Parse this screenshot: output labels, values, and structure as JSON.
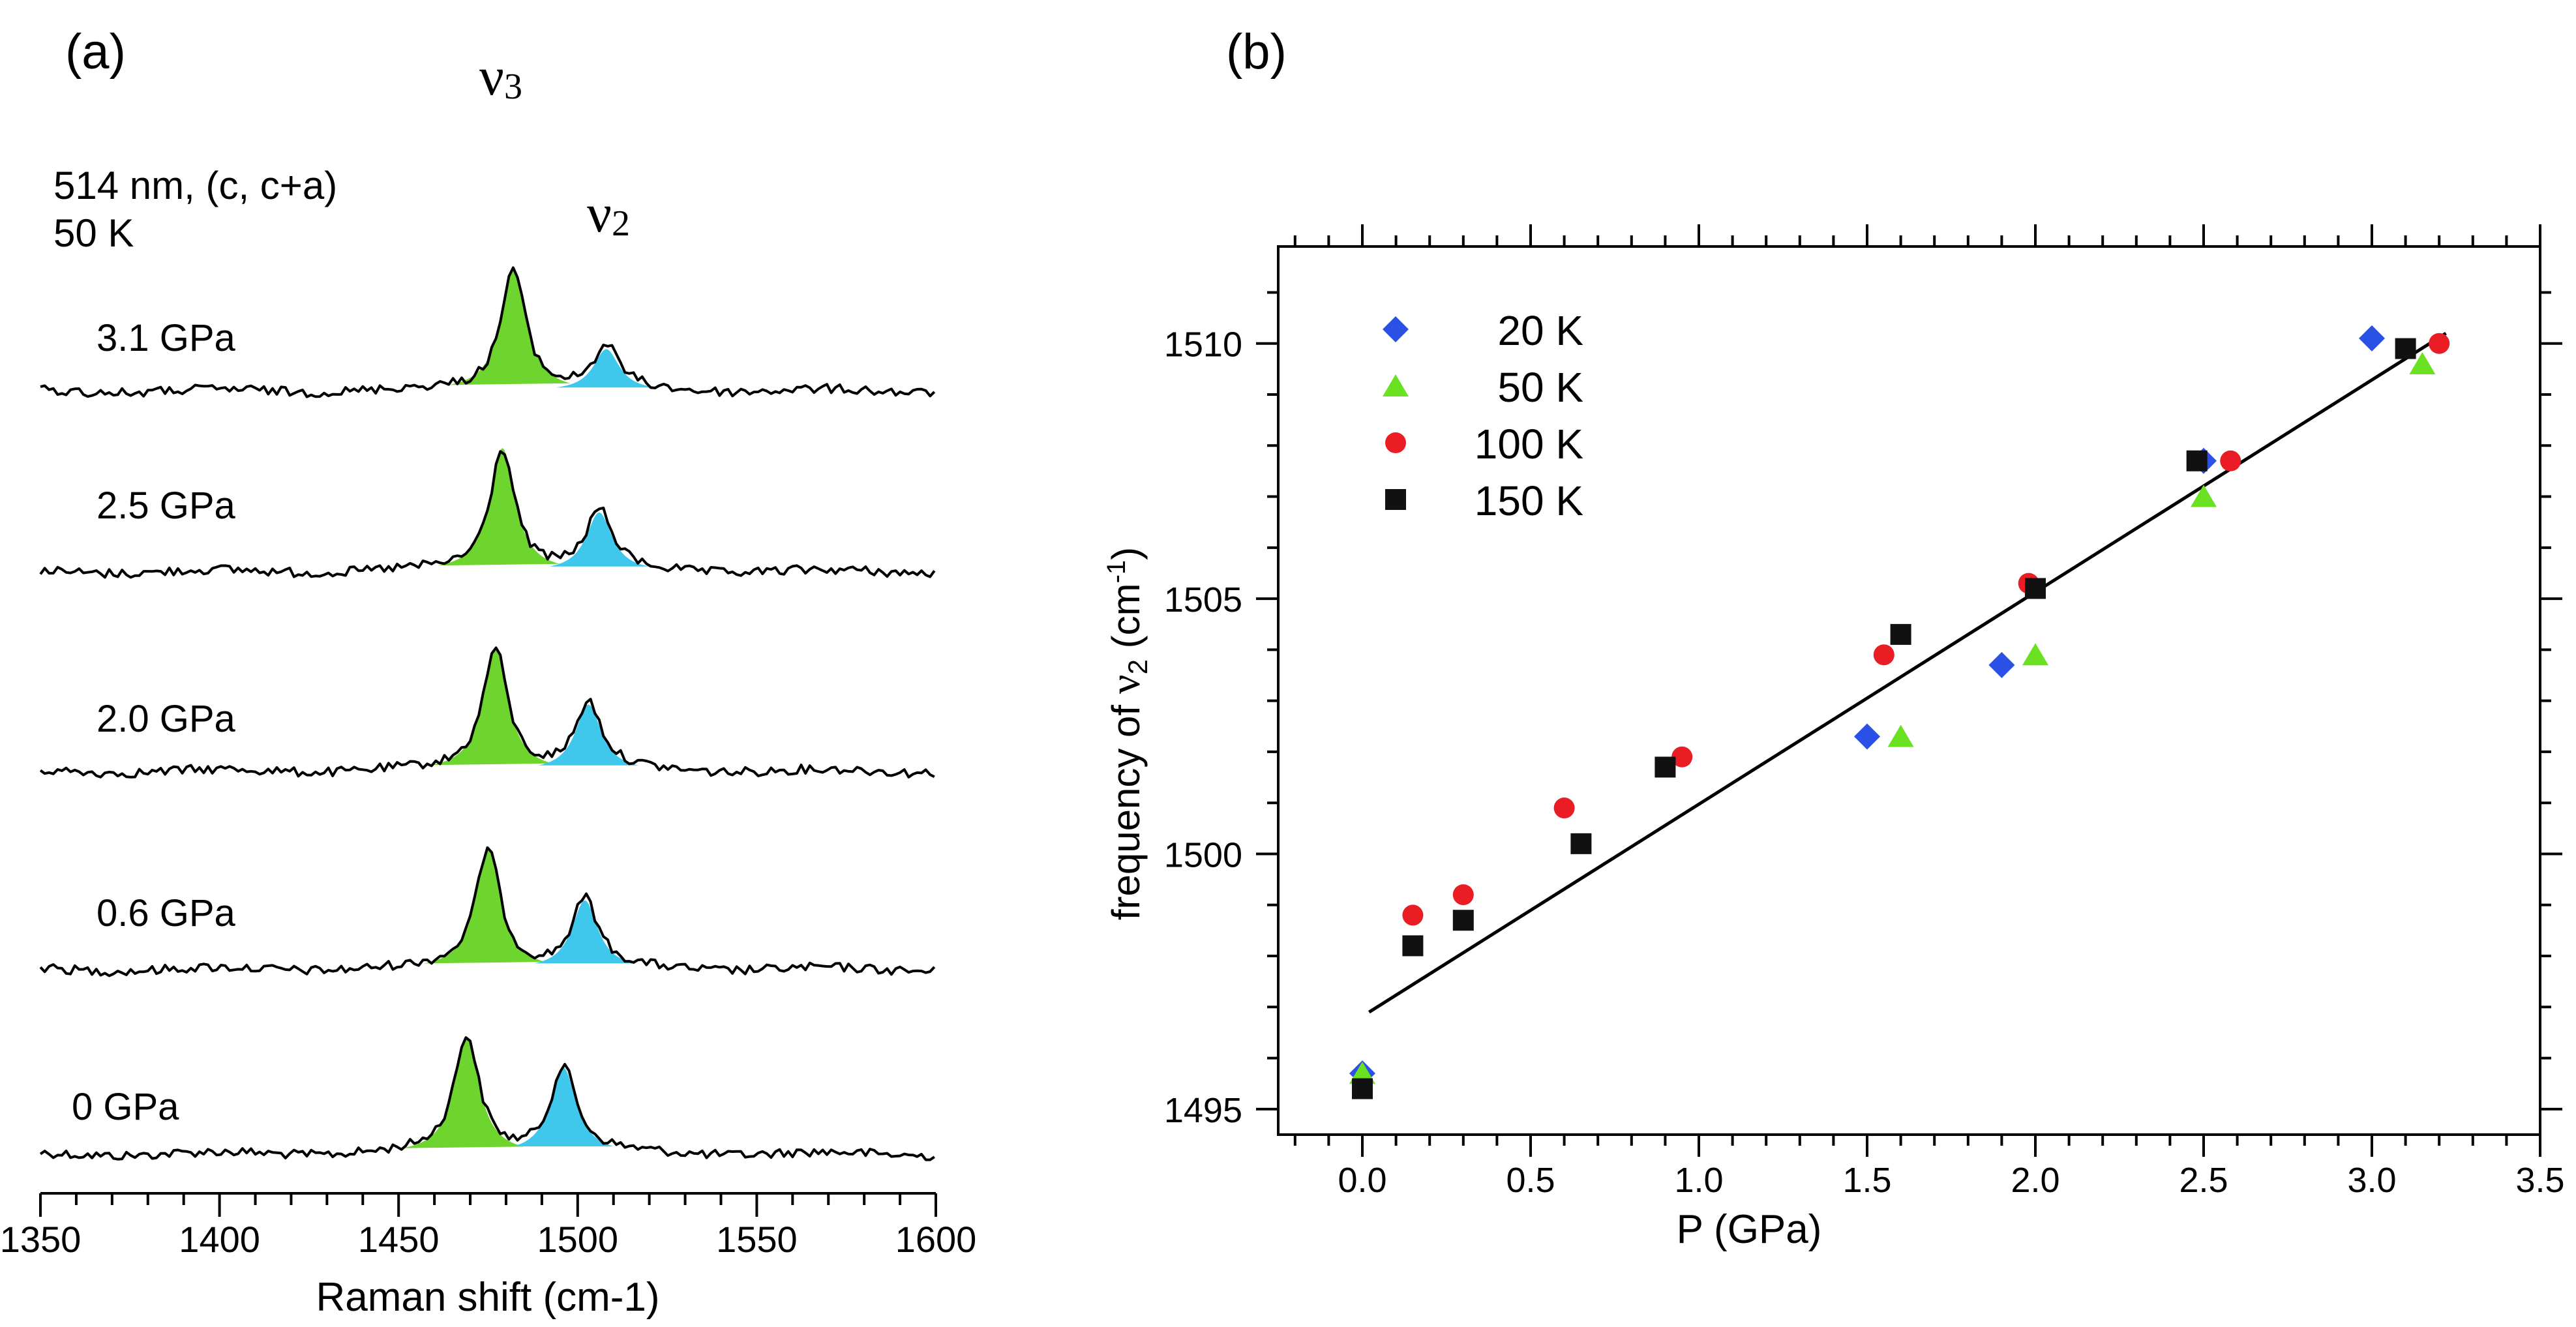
{
  "chart_data": [
    {
      "type": "line",
      "panel_label": "(a)",
      "title": "",
      "xlabel": "Raman shift (cm-1)",
      "ylabel": "",
      "xlim": [
        1350,
        1600
      ],
      "xticks": [
        "1350",
        "1400",
        "1450",
        "1500",
        "1550",
        "1600"
      ],
      "annotation_conditions": [
        "514 nm, (c, c+a)",
        "50 K"
      ],
      "peak_labels": {
        "v3": {
          "sym": "ν",
          "sub": "3"
        },
        "v2": {
          "sym": "ν",
          "sub": "2"
        }
      },
      "colors": {
        "v3_fill": "#6ed42e",
        "v2_fill": "#40c8ec",
        "trace": "#000000"
      },
      "series": [
        {
          "name": "0 GPa",
          "v3_center": 1469,
          "v2_center": 1496,
          "v3_height": 0.95,
          "v2_height": 0.7
        },
        {
          "name": "0.6 GPa",
          "v3_center": 1475,
          "v2_center": 1502,
          "v3_height": 0.98,
          "v2_height": 0.56
        },
        {
          "name": "2.0 GPa",
          "v3_center": 1477,
          "v2_center": 1503,
          "v3_height": 1.0,
          "v2_height": 0.54
        },
        {
          "name": "2.5 GPa",
          "v3_center": 1479,
          "v2_center": 1506,
          "v3_height": 1.0,
          "v2_height": 0.48
        },
        {
          "name": "3.1 GPa",
          "v3_center": 1482,
          "v2_center": 1508,
          "v3_height": 1.0,
          "v2_height": 0.34
        }
      ]
    },
    {
      "type": "scatter",
      "panel_label": "(b)",
      "title": "",
      "xlabel": "P (GPa)",
      "ylabel_parts": {
        "pre": "frequency of ",
        "sym": "ν",
        "sub": "2",
        "mid": " (cm",
        "sup": "-1",
        "post": ")"
      },
      "xlim": [
        -0.25,
        3.5
      ],
      "ylim": [
        1494.5,
        1511.9
      ],
      "xticks": [
        "0.0",
        "0.5",
        "1.0",
        "1.5",
        "2.0",
        "2.5",
        "3.0",
        "3.5"
      ],
      "yticks": [
        "1495",
        "1500",
        "1505",
        "1510"
      ],
      "series": [
        {
          "name": "20 K",
          "marker": "diamond",
          "color": "#2a50e6",
          "x": [
            0,
            1.5,
            1.9,
            2.5,
            3.0
          ],
          "y": [
            1495.7,
            1502.3,
            1503.7,
            1507.7,
            1510.1
          ]
        },
        {
          "name": "50 K",
          "marker": "triangle",
          "color": "#6ae222",
          "x": [
            0,
            1.6,
            2.0,
            2.5,
            3.15
          ],
          "y": [
            1495.7,
            1502.3,
            1503.9,
            1507.0,
            1509.6
          ]
        },
        {
          "name": "100 K",
          "marker": "circle",
          "color": "#ea1c24",
          "x": [
            0.15,
            0.3,
            0.6,
            0.95,
            1.55,
            1.98,
            2.58,
            3.2
          ],
          "y": [
            1498.8,
            1499.2,
            1500.9,
            1501.9,
            1503.9,
            1505.3,
            1507.7,
            1510.0
          ]
        },
        {
          "name": "150 K",
          "marker": "square",
          "color": "#111111",
          "x": [
            0,
            0.15,
            0.3,
            0.65,
            0.9,
            1.6,
            2.0,
            2.48,
            3.1
          ],
          "y": [
            1495.4,
            1498.2,
            1498.7,
            1500.2,
            1501.7,
            1504.3,
            1505.2,
            1507.7,
            1509.9
          ]
        }
      ],
      "fit_line": {
        "x": [
          0.02,
          3.22
        ],
        "y": [
          1496.9,
          1510.2
        ]
      }
    }
  ]
}
